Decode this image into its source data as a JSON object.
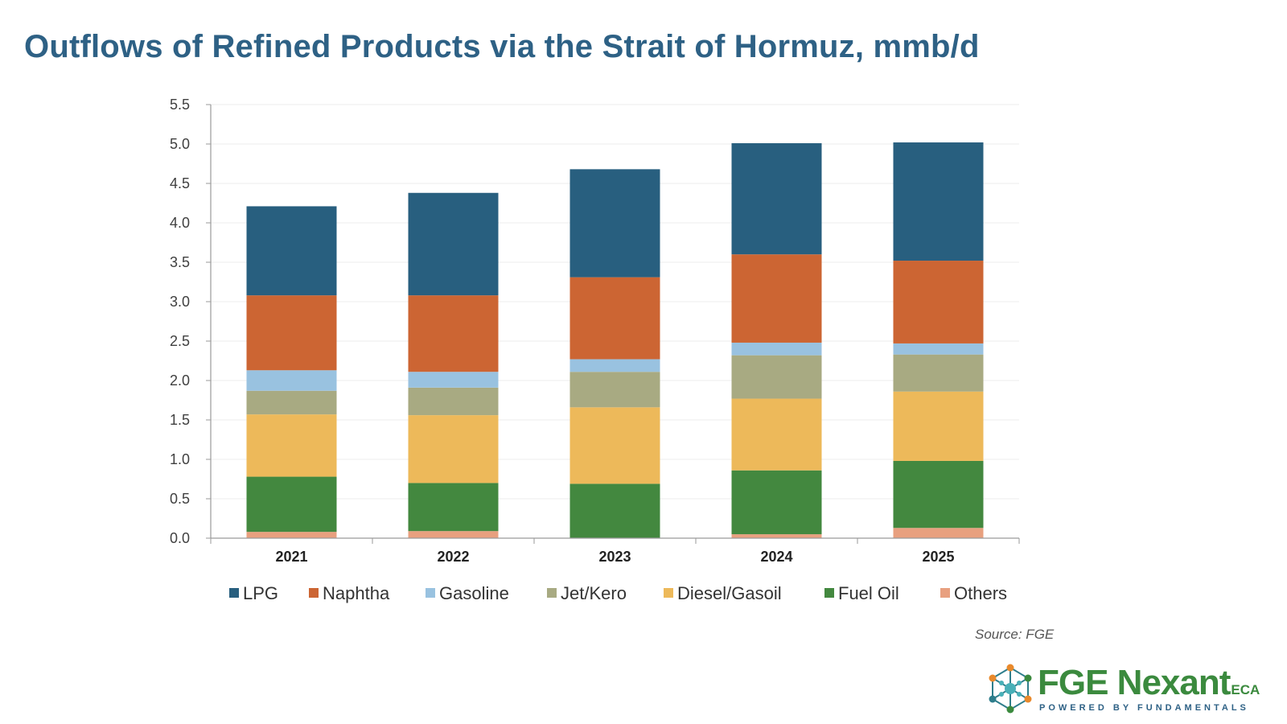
{
  "title": "Outflows of Refined Products via the Strait of Hormuz, mmb/d",
  "source": "Source: FGE",
  "logo": {
    "name": "FGE Nexant",
    "suffix": "ECA",
    "tagline": "POWERED BY FUNDAMENTALS"
  },
  "chart_data": {
    "type": "bar",
    "stacked": true,
    "categories": [
      "2021",
      "2022",
      "2023",
      "2024",
      "2025"
    ],
    "ylim": [
      0,
      5.5
    ],
    "yticks": [
      "0.0",
      "0.5",
      "1.0",
      "1.5",
      "2.0",
      "2.5",
      "3.0",
      "3.5",
      "4.0",
      "4.5",
      "5.0",
      "5.5"
    ],
    "grid": true,
    "legend_position": "bottom",
    "series": [
      {
        "name": "Others",
        "color": "#E8A07F",
        "values": [
          0.08,
          0.09,
          0.0,
          0.05,
          0.13
        ]
      },
      {
        "name": "Fuel Oil",
        "color": "#43883F",
        "values": [
          0.7,
          0.61,
          0.69,
          0.81,
          0.85
        ]
      },
      {
        "name": "Diesel/Gasoil",
        "color": "#EDB95A",
        "values": [
          0.79,
          0.86,
          0.97,
          0.91,
          0.88
        ]
      },
      {
        "name": "Jet/Kero",
        "color": "#A8AA82",
        "values": [
          0.3,
          0.35,
          0.45,
          0.55,
          0.47
        ]
      },
      {
        "name": "Gasoline",
        "color": "#99C2E0",
        "values": [
          0.26,
          0.2,
          0.16,
          0.16,
          0.14
        ]
      },
      {
        "name": "Naphtha",
        "color": "#CC6533",
        "values": [
          0.95,
          0.97,
          1.04,
          1.12,
          1.05
        ]
      },
      {
        "name": "LPG",
        "color": "#285F7F",
        "values": [
          1.13,
          1.3,
          1.37,
          1.41,
          1.5
        ]
      }
    ],
    "legend_order": [
      "LPG",
      "Naphtha",
      "Gasoline",
      "Jet/Kero",
      "Diesel/Gasoil",
      "Fuel Oil",
      "Others"
    ]
  }
}
